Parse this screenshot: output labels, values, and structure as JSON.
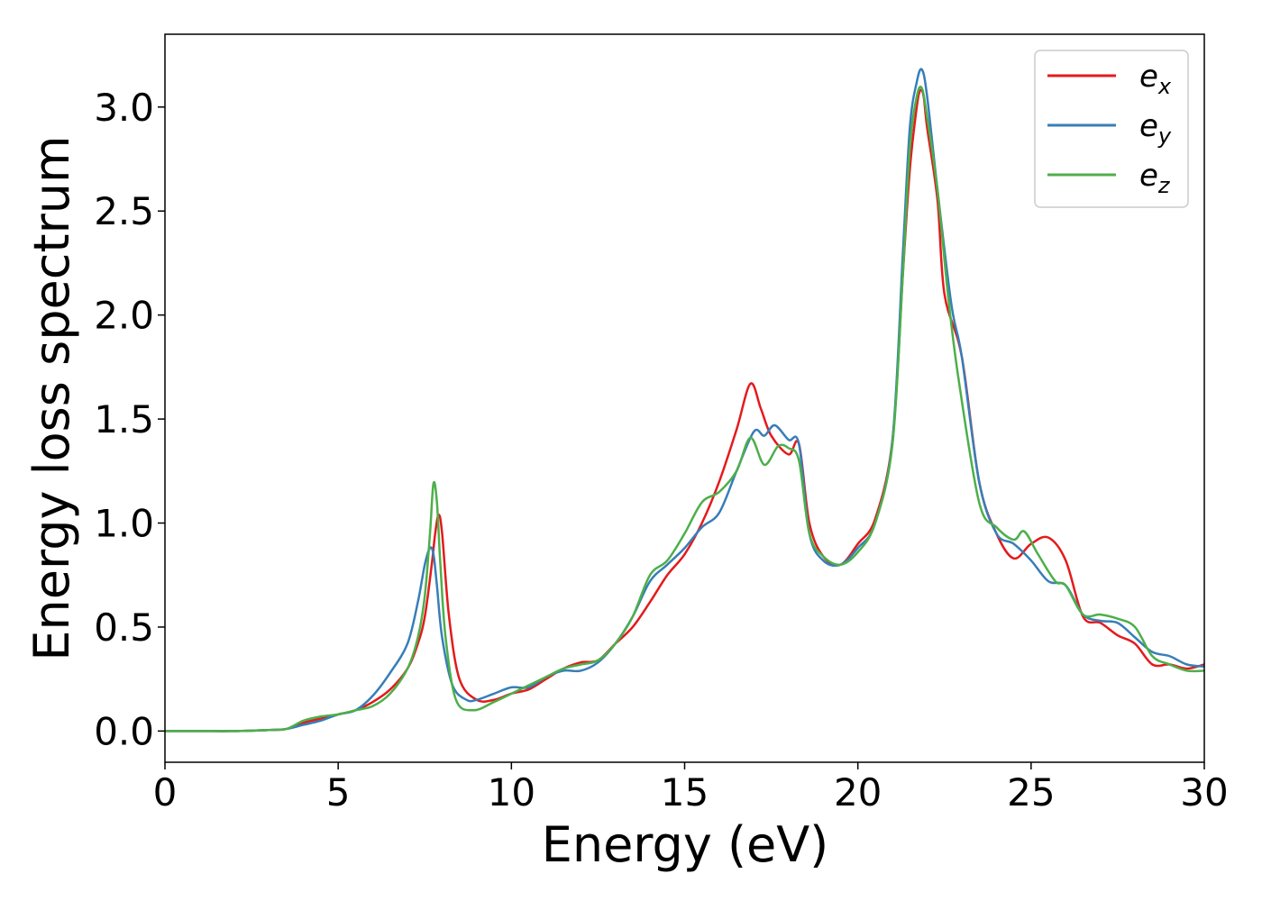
{
  "chart_data": {
    "type": "line",
    "xlabel": "Energy (eV)",
    "ylabel": "Energy loss spectrum",
    "xlim": [
      0,
      30
    ],
    "ylim": [
      -0.15,
      3.35
    ],
    "xticks": [
      0,
      5,
      10,
      15,
      20,
      25,
      30
    ],
    "xtick_labels": [
      "0",
      "5",
      "10",
      "15",
      "20",
      "25",
      "30"
    ],
    "yticks": [
      0.0,
      0.5,
      1.0,
      1.5,
      2.0,
      2.5,
      3.0
    ],
    "ytick_labels": [
      "0.0",
      "0.5",
      "1.0",
      "1.5",
      "2.0",
      "2.5",
      "3.0"
    ],
    "grid": false,
    "legend_position": "top-right",
    "series": [
      {
        "name": "e_x",
        "label_base": "e",
        "label_sub": "x",
        "color": "#e41a1c",
        "x": [
          0,
          1,
          2,
          3,
          3.5,
          4,
          4.5,
          5,
          5.5,
          6,
          6.5,
          7,
          7.3,
          7.5,
          7.7,
          7.8,
          7.9,
          8.0,
          8.2,
          8.5,
          9,
          9.5,
          10,
          10.5,
          11,
          11.5,
          12,
          12.5,
          13,
          13.5,
          14,
          14.5,
          15,
          15.5,
          16,
          16.5,
          16.9,
          17.2,
          17.5,
          18,
          18.3,
          18.6,
          19,
          19.5,
          20,
          20.5,
          21,
          21.3,
          21.5,
          21.7,
          21.8,
          21.9,
          22,
          22.3,
          22.5,
          23,
          23.5,
          24,
          24.5,
          25,
          25.5,
          26,
          26.5,
          27,
          27.5,
          28,
          28.5,
          29,
          29.5,
          30
        ],
        "values": [
          0,
          0,
          0,
          0.005,
          0.01,
          0.04,
          0.06,
          0.08,
          0.1,
          0.14,
          0.2,
          0.3,
          0.42,
          0.55,
          0.8,
          0.95,
          1.04,
          0.95,
          0.55,
          0.25,
          0.15,
          0.15,
          0.18,
          0.2,
          0.25,
          0.3,
          0.33,
          0.34,
          0.42,
          0.5,
          0.62,
          0.75,
          0.85,
          1.0,
          1.2,
          1.45,
          1.67,
          1.55,
          1.42,
          1.33,
          1.38,
          1.0,
          0.84,
          0.8,
          0.9,
          1.02,
          1.4,
          2.2,
          2.7,
          3.0,
          3.08,
          3.05,
          2.9,
          2.55,
          2.1,
          1.8,
          1.2,
          0.95,
          0.83,
          0.9,
          0.93,
          0.82,
          0.55,
          0.52,
          0.46,
          0.42,
          0.32,
          0.32,
          0.3,
          0.32
        ]
      },
      {
        "name": "e_y",
        "label_base": "e",
        "label_sub": "y",
        "color": "#377eb8",
        "x": [
          0,
          1,
          2,
          3,
          3.5,
          4,
          4.5,
          5,
          5.5,
          6,
          6.5,
          7,
          7.3,
          7.5,
          7.65,
          7.75,
          7.85,
          8.0,
          8.3,
          8.7,
          9,
          9.5,
          10,
          10.5,
          11,
          11.5,
          12,
          12.5,
          13,
          13.5,
          14,
          14.5,
          15,
          15.5,
          16,
          16.5,
          17,
          17.3,
          17.6,
          18,
          18.3,
          18.6,
          19,
          19.5,
          20,
          20.5,
          21,
          21.3,
          21.5,
          21.7,
          21.85,
          22,
          22.3,
          22.7,
          23,
          23.5,
          24,
          24.5,
          25,
          25.5,
          26,
          26.5,
          27,
          27.5,
          28,
          28.5,
          29,
          29.5,
          30
        ],
        "values": [
          0,
          0,
          0,
          0.005,
          0.01,
          0.03,
          0.05,
          0.08,
          0.1,
          0.17,
          0.28,
          0.42,
          0.62,
          0.8,
          0.88,
          0.85,
          0.7,
          0.45,
          0.22,
          0.15,
          0.15,
          0.18,
          0.21,
          0.21,
          0.26,
          0.29,
          0.29,
          0.33,
          0.42,
          0.55,
          0.72,
          0.8,
          0.88,
          0.98,
          1.05,
          1.25,
          1.44,
          1.42,
          1.47,
          1.4,
          1.38,
          0.95,
          0.82,
          0.8,
          0.88,
          1.0,
          1.4,
          2.3,
          2.9,
          3.12,
          3.18,
          3.05,
          2.6,
          2.05,
          1.8,
          1.2,
          0.95,
          0.9,
          0.82,
          0.72,
          0.7,
          0.56,
          0.53,
          0.52,
          0.45,
          0.38,
          0.36,
          0.32,
          0.31
        ]
      },
      {
        "name": "e_z",
        "label_base": "e",
        "label_sub": "z",
        "color": "#4daf4a",
        "x": [
          0,
          1,
          2,
          3,
          3.5,
          4,
          4.5,
          5,
          5.5,
          6,
          6.5,
          7,
          7.3,
          7.5,
          7.65,
          7.75,
          7.85,
          7.95,
          8.1,
          8.4,
          8.9,
          9.5,
          10,
          10.5,
          11,
          11.5,
          12,
          12.5,
          13,
          13.5,
          14,
          14.5,
          15,
          15.5,
          16,
          16.5,
          16.9,
          17.3,
          17.7,
          18,
          18.3,
          18.6,
          19,
          19.5,
          20,
          20.5,
          21,
          21.3,
          21.5,
          21.7,
          21.85,
          22,
          22.3,
          22.6,
          22.9,
          23.5,
          24,
          24.5,
          24.8,
          25.2,
          25.7,
          26,
          26.5,
          27,
          27.5,
          28,
          28.5,
          29,
          29.5,
          30
        ],
        "values": [
          0,
          0,
          0,
          0.005,
          0.01,
          0.05,
          0.07,
          0.08,
          0.1,
          0.12,
          0.18,
          0.3,
          0.45,
          0.65,
          0.95,
          1.19,
          1.1,
          0.8,
          0.45,
          0.15,
          0.1,
          0.14,
          0.18,
          0.22,
          0.26,
          0.3,
          0.32,
          0.34,
          0.42,
          0.55,
          0.75,
          0.82,
          0.95,
          1.1,
          1.15,
          1.25,
          1.41,
          1.28,
          1.37,
          1.36,
          1.3,
          0.95,
          0.84,
          0.8,
          0.86,
          1.0,
          1.38,
          2.2,
          2.8,
          3.05,
          3.09,
          2.95,
          2.6,
          2.1,
          1.7,
          1.1,
          0.98,
          0.92,
          0.96,
          0.85,
          0.72,
          0.7,
          0.56,
          0.56,
          0.54,
          0.5,
          0.36,
          0.32,
          0.29,
          0.29
        ]
      }
    ]
  }
}
